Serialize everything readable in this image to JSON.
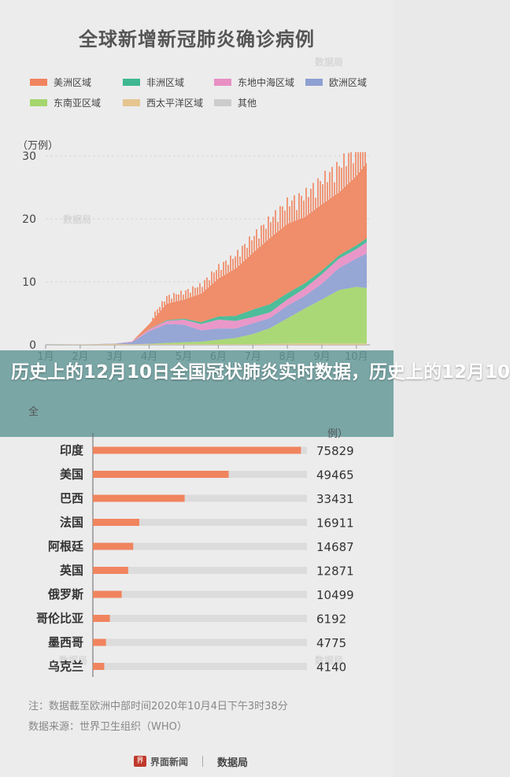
{
  "page": {
    "title": "全球新增新冠肺炎确诊病例",
    "banner_text": "历史上的12月10日全国冠状肺炎实时数据，历史上的12月10",
    "peek_left": "全",
    "peek_right": "例）",
    "note": "注：数据截至欧洲中部时间2020年10月4日下午3时38分",
    "source": "数据来源：世界卫生组织（WHO）",
    "footer_logo": "界面新闻",
    "footer_brand": "数据局",
    "watermark": "数据局"
  },
  "colors": {
    "americas": "#f0845e",
    "africa": "#3fb892",
    "east_med": "#e88fc4",
    "europe": "#8e9fd2",
    "se_asia": "#a4d66d",
    "west_pac": "#e5c590",
    "other": "#cccccc",
    "hbar": "#f0845e",
    "hbar_track": "#dcdcdc"
  },
  "chart_data": [
    {
      "type": "area",
      "title": "全球新增新冠肺炎确诊病例",
      "ylabel": "（万例）",
      "ylim": [
        0,
        30
      ],
      "yticks": [
        "0",
        "10",
        "20",
        "30"
      ],
      "x_months": [
        "1月",
        "2月",
        "3月",
        "4月",
        "5月",
        "6月",
        "7月",
        "8月",
        "9月",
        "10月"
      ],
      "legend": [
        {
          "key": "americas",
          "label": "美洲区域"
        },
        {
          "key": "africa",
          "label": "非洲区域"
        },
        {
          "key": "east_med",
          "label": "东地中海区域"
        },
        {
          "key": "europe",
          "label": "欧洲区域"
        },
        {
          "key": "se_asia",
          "label": "东南亚区域"
        },
        {
          "key": "west_pac",
          "label": "西太平洋区域"
        },
        {
          "key": "other",
          "label": "其他"
        }
      ],
      "stack_order": [
        "west_pac",
        "se_asia",
        "europe",
        "east_med",
        "africa",
        "americas"
      ],
      "x": [
        0,
        1,
        2,
        2.5,
        3,
        3.5,
        4,
        4.5,
        5,
        5.5,
        6,
        6.5,
        7,
        7.5,
        8,
        8.5,
        9,
        9.3
      ],
      "series": {
        "west_pac": [
          0,
          0.05,
          0.15,
          0.1,
          0.1,
          0.1,
          0.1,
          0.1,
          0.1,
          0.1,
          0.1,
          0.15,
          0.2,
          0.25,
          0.2,
          0.2,
          0.2,
          0.2
        ],
        "se_asia": [
          0,
          0,
          0,
          0,
          0.05,
          0.2,
          0.3,
          0.4,
          0.7,
          1.0,
          1.6,
          2.5,
          4.0,
          5.5,
          7.0,
          8.5,
          9.0,
          8.8
        ],
        "europe": [
          0,
          0,
          0.05,
          0.3,
          2.0,
          3.0,
          2.8,
          1.8,
          1.8,
          1.5,
          1.7,
          1.6,
          2.0,
          2.0,
          2.5,
          3.5,
          4.5,
          5.5
        ],
        "east_med": [
          0,
          0,
          0.01,
          0.1,
          0.3,
          0.5,
          0.8,
          1.0,
          1.4,
          1.2,
          1.0,
          0.9,
          1.0,
          1.2,
          1.5,
          1.5,
          1.5,
          1.8
        ],
        "africa": [
          0,
          0,
          0,
          0,
          0.05,
          0.1,
          0.15,
          0.3,
          0.5,
          0.8,
          1.2,
          1.3,
          1.0,
          0.8,
          0.6,
          0.5,
          0.6,
          0.6
        ],
        "americas": [
          0,
          0,
          0,
          0.02,
          0.8,
          2.6,
          3.0,
          4.5,
          6.0,
          7.5,
          9.0,
          10.5,
          11.0,
          10.5,
          10.5,
          10.0,
          11.0,
          12.0
        ]
      }
    },
    {
      "type": "bar",
      "orientation": "horizontal",
      "categories": [
        "印度",
        "美国",
        "巴西",
        "法国",
        "阿根廷",
        "英国",
        "俄罗斯",
        "哥伦比亚",
        "墨西哥",
        "乌克兰"
      ],
      "values": [
        75829,
        49465,
        33431,
        16911,
        14687,
        12871,
        10499,
        6192,
        4775,
        4140
      ],
      "value_labels": [
        "75829",
        "49465",
        "33431",
        "16911",
        "14687",
        "12871",
        "10499",
        "6192",
        "4775",
        "4140"
      ],
      "xlim": [
        0,
        78000
      ]
    }
  ]
}
